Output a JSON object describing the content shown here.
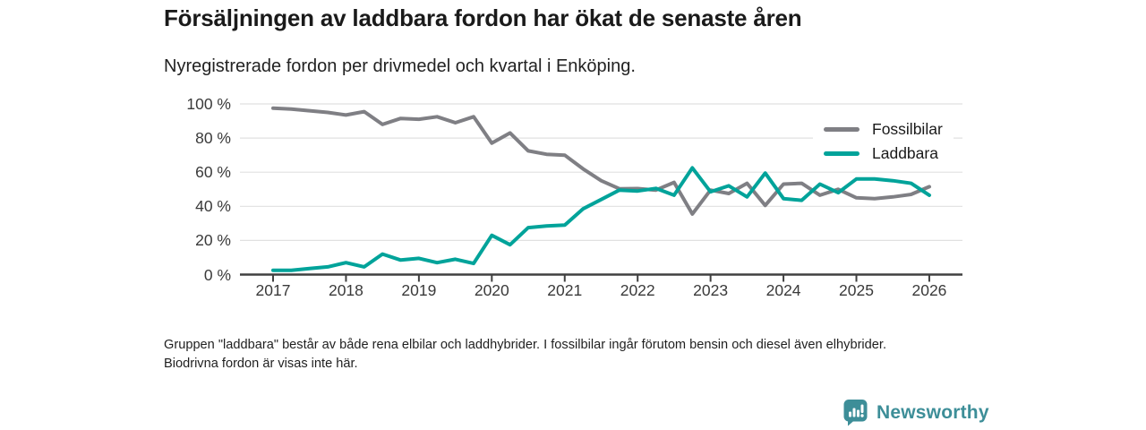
{
  "page": {
    "title": "Försäljningen av laddbara fordon har ökat de senaste åren",
    "subtitle": "Nyregistrerade fordon per drivmedel och kvartal i Enköping.",
    "footnote": "Gruppen \"laddbara\" består av både rena elbilar och laddhybrider. I fossilbilar ingår förutom bensin och diesel även elhybrider. Biodrivna fordon är visas inte här.",
    "brand": {
      "name": "Newsworthy",
      "color": "#3d8e98",
      "icon": "bar-chart-speech-bubble-icon"
    }
  },
  "chart_data": {
    "type": "line",
    "title": "Försäljningen av laddbara fordon har ökat de senaste åren",
    "subtitle": "Nyregistrerade fordon per drivmedel och kvartal i Enköping.",
    "xlabel": "",
    "ylabel": "",
    "y_unit": "%",
    "ylim": [
      0,
      100
    ],
    "grid": true,
    "legend_position": "top-right",
    "x_frequency": "quarterly",
    "x_range": "2017 Q1 to 2026 Q1",
    "x_ticks": [
      "2017",
      "2018",
      "2019",
      "2020",
      "2021",
      "2022",
      "2023",
      "2024",
      "2025",
      "2026"
    ],
    "y_ticks": [
      "0 %",
      "20 %",
      "40 %",
      "60 %",
      "80 %",
      "100 %"
    ],
    "series": [
      {
        "name": "Fossilbilar",
        "color": "#7f7f84",
        "values": [
          97.5,
          97,
          96,
          95,
          93.5,
          95.5,
          88,
          91.5,
          91,
          92.5,
          89,
          92.5,
          77,
          83,
          72.5,
          70.5,
          70,
          62,
          55,
          50.3,
          50.4,
          49.5,
          54,
          35.5,
          49.5,
          47.5,
          53.5,
          40.5,
          53,
          53.5,
          46.5,
          50,
          45,
          44.5,
          45.5,
          47,
          51.5
        ]
      },
      {
        "name": "Laddbara",
        "color": "#00a39a",
        "values": [
          2.5,
          2.5,
          3.5,
          4.5,
          7,
          4.5,
          12,
          8.5,
          9.5,
          7,
          9,
          6.5,
          23,
          17.5,
          27.5,
          28.5,
          29,
          38.5,
          44,
          49.5,
          49,
          50.5,
          46.5,
          62.5,
          48.5,
          52,
          45.5,
          59.5,
          44.5,
          43.5,
          53,
          48,
          56,
          56,
          55,
          53.5,
          46.5
        ]
      }
    ]
  }
}
